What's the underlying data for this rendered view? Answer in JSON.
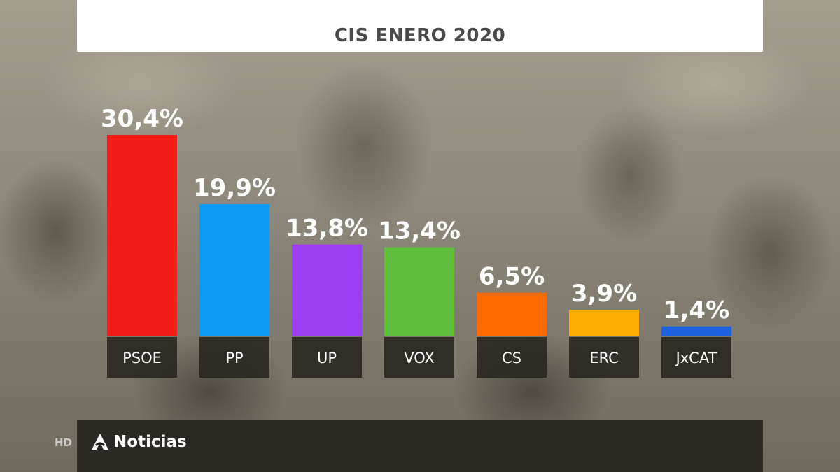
{
  "header": {
    "title": "CIS ENERO 2020"
  },
  "chart_data": {
    "type": "bar",
    "title": "CIS ENERO 2020",
    "categories": [
      "PSOE",
      "PP",
      "UP",
      "VOX",
      "CS",
      "ERC",
      "JxCAT"
    ],
    "values": [
      30.4,
      19.9,
      13.8,
      13.4,
      6.5,
      3.9,
      1.4
    ],
    "value_labels": [
      "30,4%",
      "19,9%",
      "13,8%",
      "13,4%",
      "6,5%",
      "3,9%",
      "1,4%"
    ],
    "colors": [
      "#f21d16",
      "#0c9bf7",
      "#9b3ff0",
      "#5fbf3c",
      "#ff6a00",
      "#ffac00",
      "#1c63dd"
    ],
    "ylim": [
      0,
      30.4
    ],
    "grid": false,
    "legend": "none"
  },
  "footer": {
    "hd_label": "HD",
    "brand_name": "Noticias",
    "brand_logo_icon": "antena3-logo-icon"
  }
}
